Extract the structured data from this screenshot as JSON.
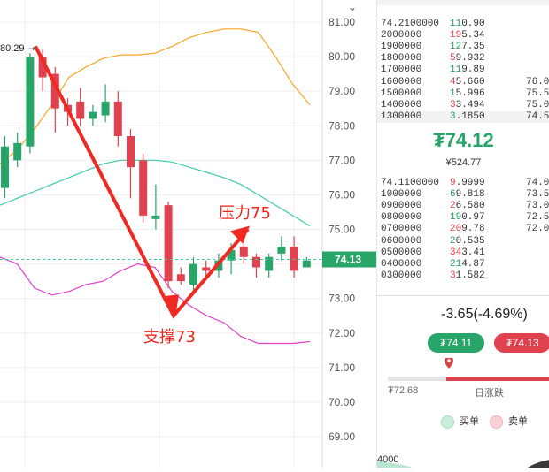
{
  "y_axis": {
    "ticks": [
      "81.00",
      "80.00",
      "79.00",
      "78.00",
      "77.00",
      "76.00",
      "75.00",
      "74.00",
      "73.00",
      "72.00",
      "71.00",
      "70.00",
      "69.00"
    ],
    "current_tag": "74.13",
    "top_button": "⌄"
  },
  "high_marker": "80.29",
  "annotations": {
    "resistance": "压力75",
    "support": "支撑73"
  },
  "order_book": {
    "asks": [
      {
        "price": "74.2100000",
        "qty": "110.90",
        "level": ""
      },
      {
        "price": "2000000",
        "qty": "195.34",
        "level": ""
      },
      {
        "price": "1900000",
        "qty": "127.35",
        "level": ""
      },
      {
        "price": "1800000",
        "qty": "59.932",
        "level": ""
      },
      {
        "price": "1700000",
        "qty": "119.89",
        "level": ""
      },
      {
        "price": "1600000",
        "qty": "45.660",
        "level": "76.0"
      },
      {
        "price": "1500000",
        "qty": "15.996",
        "level": "75.5"
      },
      {
        "price": "1400000",
        "qty": "33.494",
        "level": "75.0"
      },
      {
        "price": "1300000",
        "qty": "3.1850",
        "level": "74.5"
      }
    ],
    "current_price": "₮74.12",
    "current_price_sub": "¥524.77",
    "bids": [
      {
        "price": "74.1100000",
        "qty": "9.9999",
        "level": "74.0"
      },
      {
        "price": "1000000",
        "qty": "69.818",
        "level": "73.5"
      },
      {
        "price": "0900000",
        "qty": "26.580",
        "level": "73.0"
      },
      {
        "price": "0800000",
        "qty": "190.97",
        "level": "72.5"
      },
      {
        "price": "0700000",
        "qty": "209.78",
        "level": "72.0"
      },
      {
        "price": "0600000",
        "qty": "20.535",
        "level": ""
      },
      {
        "price": "0500000",
        "qty": "343.41",
        "level": ""
      },
      {
        "price": "0400000",
        "qty": "214.87",
        "level": ""
      },
      {
        "price": "0300000",
        "qty": "31.582",
        "level": ""
      }
    ]
  },
  "change": "-3.65(-4.69%)",
  "buy_button": "₮74.11",
  "sell_button": "₮74.13",
  "range_low": "₮72.68",
  "range_label": "日涨跌",
  "legend": {
    "buy": "买单",
    "sell": "卖单"
  },
  "volume_label": "4000",
  "colors": {
    "up": "#2aa56a",
    "down": "#e0414f",
    "arrow": "#ee2a22",
    "ma_orange": "#f5a623",
    "ma_teal": "#3ec9a7",
    "ma_pink": "#e040c8"
  },
  "chart_data": {
    "type": "candlestick",
    "ylim": [
      68.65,
      81.55
    ],
    "candles": [
      {
        "o": 76.2,
        "c": 77.4,
        "h": 77.7,
        "l": 75.9
      },
      {
        "o": 77.0,
        "c": 77.5,
        "h": 77.8,
        "l": 76.8
      },
      {
        "o": 77.4,
        "c": 80.0,
        "h": 80.1,
        "l": 77.2
      },
      {
        "o": 80.0,
        "c": 79.4,
        "h": 80.2,
        "l": 79.0
      },
      {
        "o": 79.5,
        "c": 78.5,
        "h": 79.7,
        "l": 77.8
      },
      {
        "o": 78.6,
        "c": 78.4,
        "h": 78.8,
        "l": 78.0
      },
      {
        "o": 78.7,
        "c": 78.2,
        "h": 79.1,
        "l": 78.0
      },
      {
        "o": 78.2,
        "c": 78.4,
        "h": 78.6,
        "l": 78.0
      },
      {
        "o": 78.3,
        "c": 78.7,
        "h": 79.2,
        "l": 78.1
      },
      {
        "o": 78.7,
        "c": 77.7,
        "h": 79.0,
        "l": 77.4
      },
      {
        "o": 77.7,
        "c": 76.8,
        "h": 77.9,
        "l": 75.9
      },
      {
        "o": 77.0,
        "c": 75.4,
        "h": 77.2,
        "l": 75.2
      },
      {
        "o": 75.3,
        "c": 75.4,
        "h": 76.3,
        "l": 75.0
      },
      {
        "o": 75.7,
        "c": 73.5,
        "h": 75.8,
        "l": 73.3
      },
      {
        "o": 73.7,
        "c": 73.5,
        "h": 73.9,
        "l": 73.4
      },
      {
        "o": 73.4,
        "c": 74.0,
        "h": 74.2,
        "l": 73.2
      },
      {
        "o": 73.9,
        "c": 73.8,
        "h": 74.1,
        "l": 73.6
      },
      {
        "o": 73.8,
        "c": 74.1,
        "h": 74.3,
        "l": 73.6
      },
      {
        "o": 74.1,
        "c": 74.4,
        "h": 74.6,
        "l": 73.7
      },
      {
        "o": 74.5,
        "c": 74.2,
        "h": 74.7,
        "l": 74.0
      },
      {
        "o": 74.2,
        "c": 73.9,
        "h": 74.3,
        "l": 73.6
      },
      {
        "o": 73.8,
        "c": 74.2,
        "h": 74.3,
        "l": 73.6
      },
      {
        "o": 74.3,
        "c": 74.5,
        "h": 74.8,
        "l": 74.1
      },
      {
        "o": 74.5,
        "c": 73.8,
        "h": 74.8,
        "l": 73.6
      },
      {
        "o": 73.9,
        "c": 74.1,
        "h": 74.2,
        "l": 73.9
      }
    ],
    "ma_orange": [
      76.9,
      77.3,
      77.9,
      78.6,
      79.4,
      79.7,
      79.95,
      80.05,
      80.05,
      80.1,
      80.3,
      80.55,
      80.7,
      80.8,
      80.8,
      80.7,
      80.0,
      79.2,
      78.6
    ],
    "ma_teal": [
      75.7,
      75.9,
      76.1,
      76.3,
      76.5,
      76.7,
      76.9,
      77.0,
      77.0,
      77.0,
      76.95,
      76.8,
      76.65,
      76.5,
      76.3,
      76.0,
      75.7,
      75.4,
      75.1
    ],
    "ma_pink": [
      74.2,
      74.0,
      73.3,
      73.1,
      73.2,
      73.4,
      73.5,
      73.8,
      74.0,
      73.9,
      73.2,
      72.8,
      72.5,
      72.3,
      71.9,
      71.7,
      71.7,
      71.7,
      71.75
    ],
    "current_price": 74.13,
    "arrow": {
      "start": 80.3,
      "bottom": 72.5,
      "end": 75.0
    }
  }
}
